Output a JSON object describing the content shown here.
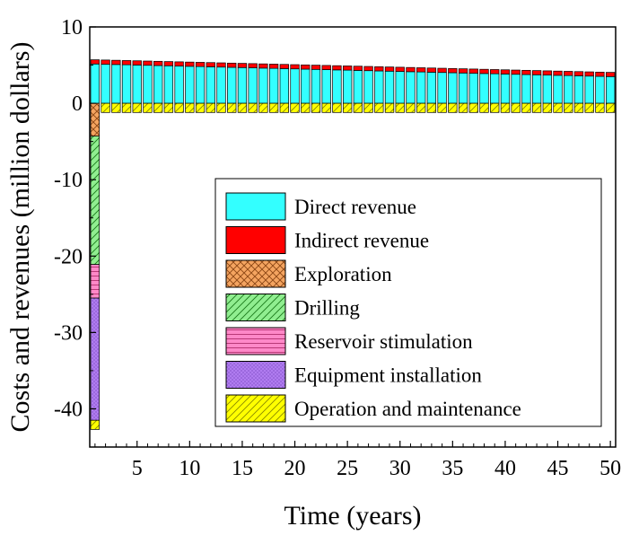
{
  "chart_data": {
    "type": "bar",
    "stacked": true,
    "xlabel": "Time (years)",
    "ylabel": "Costs and revenues (million dollars)",
    "xlim": [
      0.5,
      50.5
    ],
    "ylim": [
      -45,
      10
    ],
    "xticks": [
      5,
      10,
      15,
      20,
      25,
      30,
      35,
      40,
      45,
      50
    ],
    "yticks": [
      10,
      0,
      -10,
      -20,
      -30,
      -40
    ],
    "legend_position": "bottom-right",
    "series": [
      {
        "name": "Direct revenue",
        "color": "#33ffff",
        "pattern": "none",
        "values_start": 5.15,
        "values_end": 3.5,
        "from_year": 1,
        "to_year": 50
      },
      {
        "name": "Indirect revenue",
        "color": "#ff0000",
        "pattern": "none",
        "constant_value": 0.55,
        "from_year": 1,
        "to_year": 50
      },
      {
        "name": "Exploration",
        "color": "#f4a460",
        "pattern": "crosshatch",
        "values": {
          "1": -4.3
        }
      },
      {
        "name": "Drilling",
        "color": "#90ee90",
        "pattern": "diagonal",
        "values": {
          "1": -16.8
        }
      },
      {
        "name": "Reservoir stimulation",
        "color": "#ff88c8",
        "pattern": "horizontal",
        "values": {
          "1": -4.4
        }
      },
      {
        "name": "Equipment installation",
        "color": "#b07cf0",
        "pattern": "dots",
        "values": {
          "1": -16.0
        }
      },
      {
        "name": "Operation and maintenance",
        "color": "#ffff00",
        "pattern": "diagonal",
        "constant_value": -1.2,
        "from_year": 1,
        "to_year": 50
      }
    ]
  }
}
